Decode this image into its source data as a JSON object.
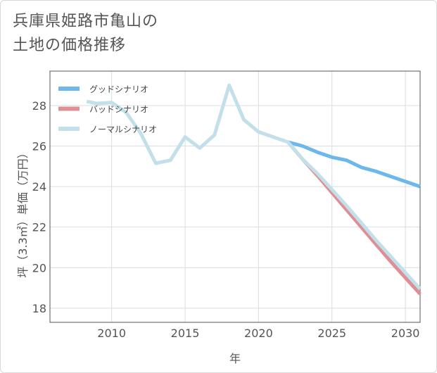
{
  "title": {
    "line1": "兵庫県姫路市亀山の",
    "line2": "土地の価格推移"
  },
  "chart_data": {
    "type": "line",
    "xlabel": "年",
    "ylabel": "坪（3.3㎡）単価（万円）",
    "xlim": [
      2005.8,
      2031
    ],
    "ylim": [
      17.3,
      29.7
    ],
    "x_ticks": [
      2010,
      2015,
      2020,
      2025,
      2030
    ],
    "y_ticks": [
      18,
      20,
      22,
      24,
      26,
      28
    ],
    "grid": true,
    "legend_position": "top-left",
    "series": [
      {
        "name": "グッドシナリオ",
        "color": "#6cb8ec",
        "x": [
          2022,
          2023,
          2024,
          2025,
          2026,
          2027,
          2028,
          2029,
          2030,
          2031
        ],
        "y": [
          26.2,
          26.0,
          25.7,
          25.45,
          25.3,
          24.95,
          24.75,
          24.5,
          24.25,
          24.0
        ]
      },
      {
        "name": "バッドシナリオ",
        "color": "#de8f94",
        "x": [
          2022,
          2023,
          2024,
          2025,
          2026,
          2027,
          2028,
          2029,
          2030,
          2031
        ],
        "y": [
          26.2,
          25.35,
          24.55,
          23.7,
          22.85,
          22.0,
          21.15,
          20.3,
          19.5,
          18.7
        ]
      },
      {
        "name": "ノーマルシナリオ",
        "color": "#c2dfea",
        "x": [
          2008.3,
          2009,
          2010,
          2011,
          2012,
          2013,
          2014,
          2015,
          2016,
          2017,
          2018,
          2019,
          2020,
          2021,
          2022,
          2023,
          2024,
          2025,
          2026,
          2027,
          2028,
          2029,
          2030,
          2031
        ],
        "y": [
          28.2,
          28.1,
          28.15,
          27.65,
          26.6,
          25.15,
          25.3,
          26.45,
          25.9,
          26.55,
          29.0,
          27.3,
          26.7,
          26.45,
          26.2,
          25.35,
          24.65,
          23.85,
          23.05,
          22.2,
          21.35,
          20.55,
          19.75,
          18.95
        ]
      }
    ]
  }
}
